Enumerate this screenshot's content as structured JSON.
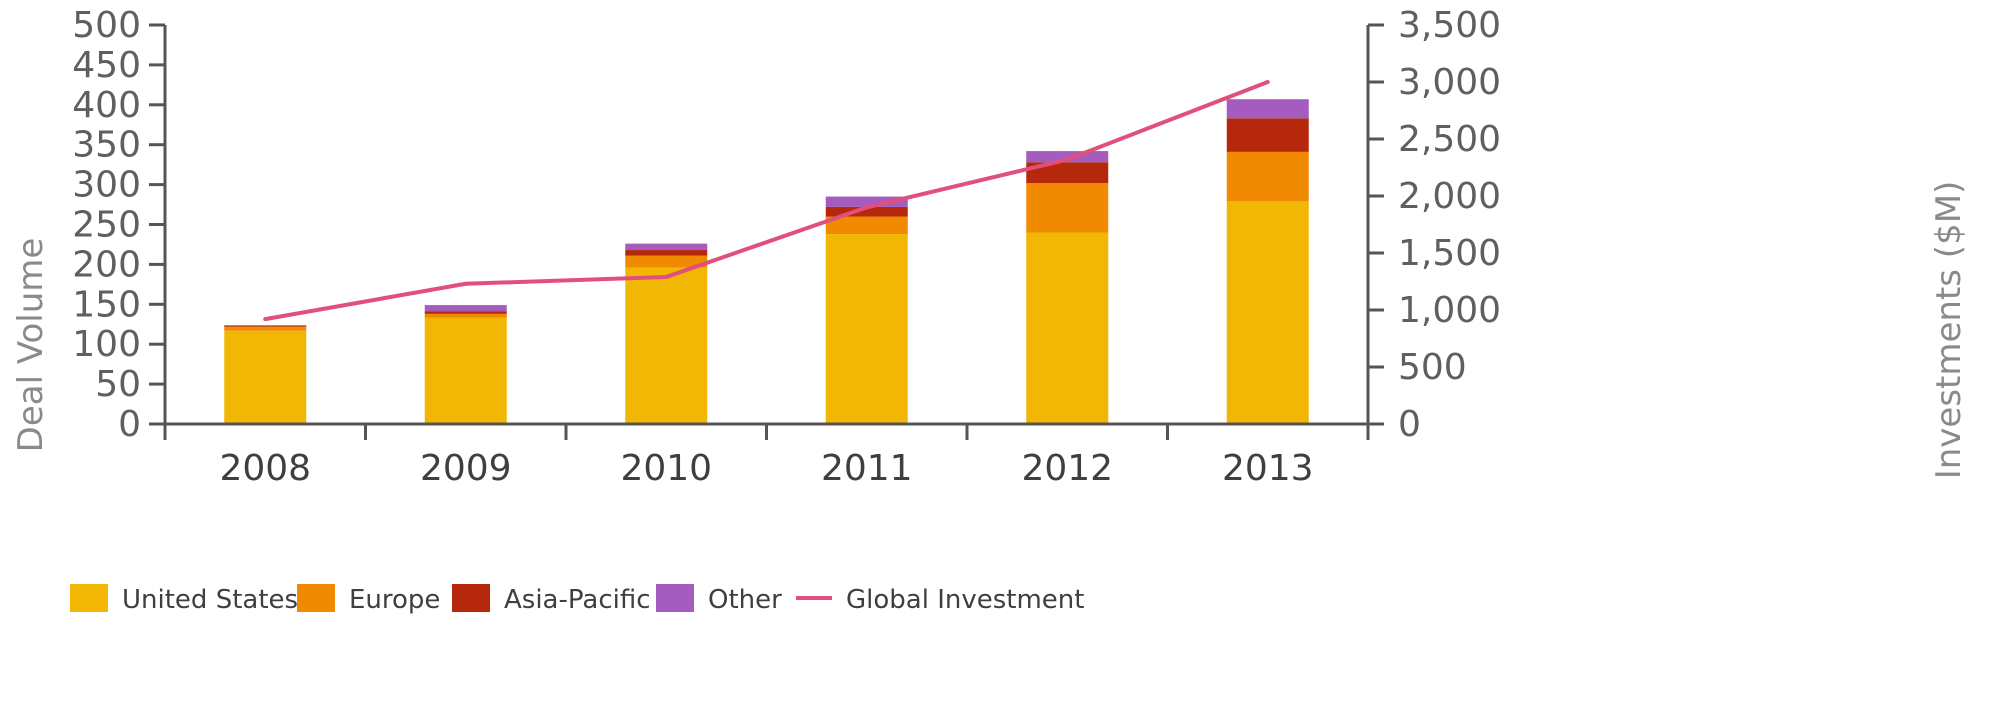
{
  "chart_data": {
    "type": "bar",
    "stacked": true,
    "categories": [
      "2008",
      "2009",
      "2010",
      "2011",
      "2012",
      "2013"
    ],
    "series": [
      {
        "name": "United States",
        "color": "#F2B705",
        "values": [
          117,
          133,
          196,
          238,
          240,
          279
        ]
      },
      {
        "name": "Europe",
        "color": "#F08A00",
        "values": [
          5,
          5,
          15,
          22,
          62,
          62
        ]
      },
      {
        "name": "Asia-Pacific",
        "color": "#B5280B",
        "values": [
          1,
          3,
          7,
          12,
          26,
          42
        ]
      },
      {
        "name": "Other",
        "color": "#A45DBE",
        "values": [
          1,
          8,
          8,
          13,
          14,
          24
        ]
      }
    ],
    "line_series": {
      "name": "Global Investment",
      "color": "#E0507A",
      "values": [
        920,
        1230,
        1290,
        1900,
        2320,
        3000
      ]
    },
    "xlabel": "",
    "ylabel": "Deal Volume",
    "y2label": "Investments ($M)",
    "ylim": [
      0,
      500
    ],
    "y2lim": [
      0,
      3500
    ],
    "yticks": [
      "0",
      "50",
      "100",
      "150",
      "200",
      "250",
      "300",
      "350",
      "400",
      "450",
      "500"
    ],
    "y2ticks": [
      "0",
      "500",
      "1,000",
      "1,500",
      "2,000",
      "2,500",
      "3,000",
      "3,500"
    ],
    "legend_position": "bottom",
    "grid": false
  }
}
